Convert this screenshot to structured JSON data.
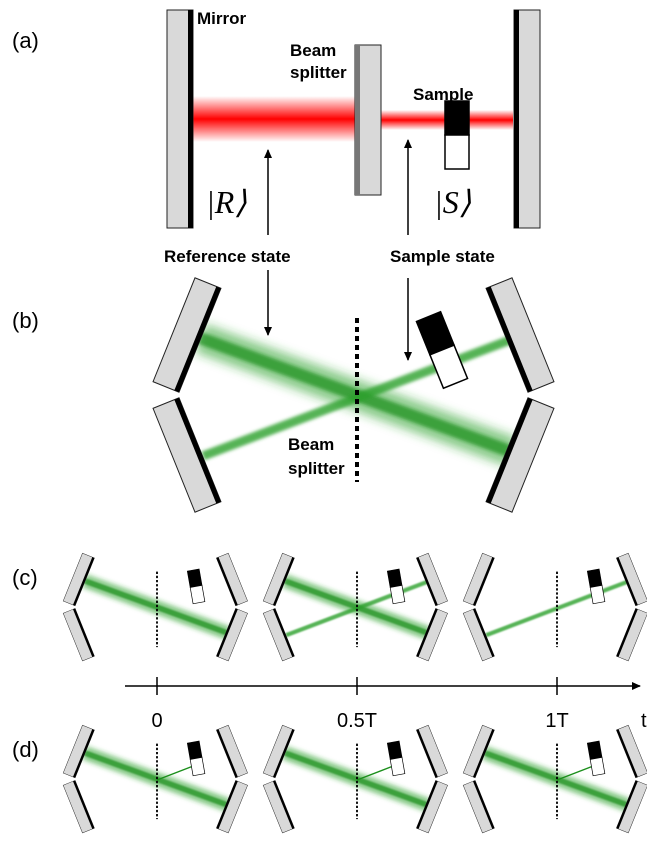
{
  "panels": {
    "a": {
      "label": "(a)",
      "mirror": "Mirror",
      "beam_splitter": [
        "Beam",
        "splitter"
      ],
      "sample": "Sample",
      "ref_ket": "|R⟩",
      "sample_ket": "|S⟩",
      "reference_state": "Reference state",
      "sample_state": "Sample state"
    },
    "b": {
      "label": "(b)",
      "beam_splitter": [
        "Beam",
        "splitter"
      ]
    },
    "c": {
      "label": "(c)"
    },
    "d": {
      "label": "(d)"
    }
  },
  "time_axis": {
    "ticks": [
      "0",
      "0.5T",
      "1T"
    ],
    "label": "t"
  }
}
